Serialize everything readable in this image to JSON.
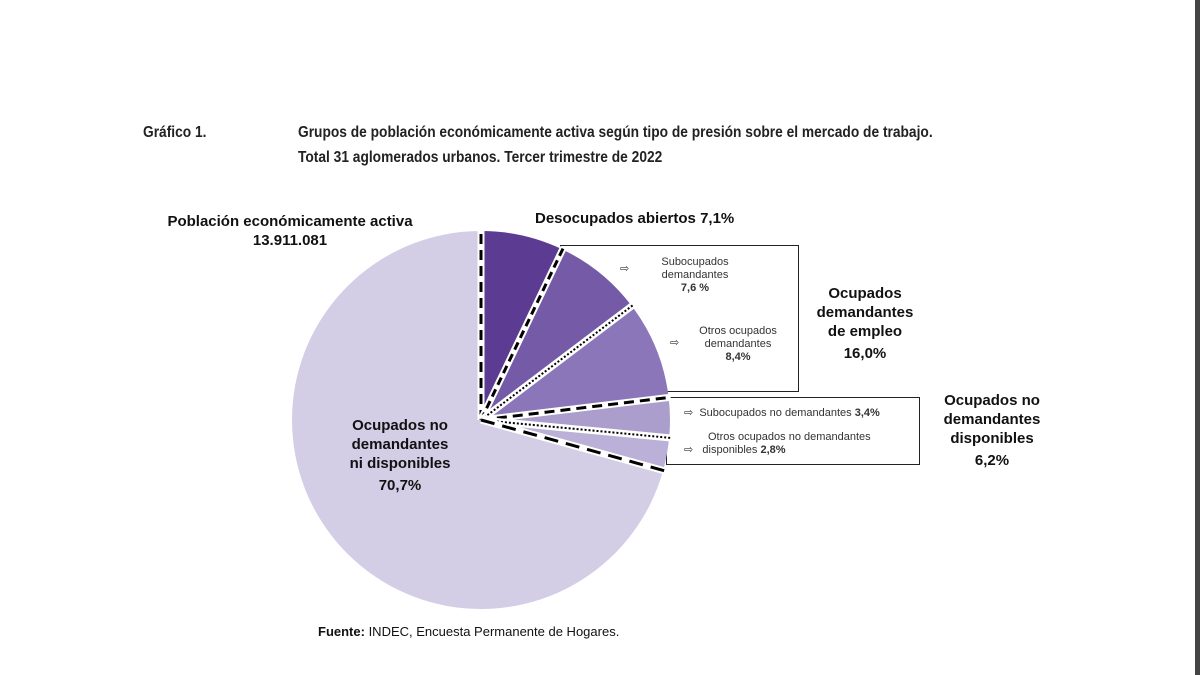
{
  "header": {
    "figure_label": "Gráfico 1.",
    "title_line1": "Grupos de población económicamente activa según tipo de presión sobre el mercado de trabajo.",
    "title_line2": "Total 31 aglomerados urbanos. Tercer trimestre de 2022"
  },
  "chart_data": {
    "type": "pie",
    "total_label": "Población económicamente activa",
    "total_value": "13.911.081",
    "slices": [
      {
        "name": "Desocupados abiertos",
        "value": 7.1,
        "label": "7,1%",
        "color": "#5c3b92"
      },
      {
        "name": "Subocupados demandantes",
        "value": 7.6,
        "label": "7,6 %",
        "color": "#755ba7"
      },
      {
        "name": "Otros ocupados demandantes",
        "value": 8.4,
        "label": "8,4%",
        "color": "#8a76b9"
      },
      {
        "name": "Subocupados no demandantes",
        "value": 3.4,
        "label": "3,4%",
        "color": "#ab9dcc"
      },
      {
        "name": "Otros ocupados no demandantes disponibles",
        "value": 2.8,
        "label": "2,8%",
        "color": "#bbb0d7"
      },
      {
        "name": "Ocupados no demandantes ni disponibles",
        "value": 70.7,
        "label": "70,7%",
        "color": "#d3cde6"
      }
    ],
    "groups": [
      {
        "name": "Ocupados demandantes de empleo",
        "lines": [
          "Ocupados",
          "demandantes",
          "de empleo"
        ],
        "label": "16,0%"
      },
      {
        "name": "Ocupados no demandantes disponibles",
        "lines": [
          "Ocupados no",
          "demandantes",
          "disponibles"
        ],
        "label": "6,2%"
      }
    ],
    "texts": {
      "desocupados": "Desocupados abiertos",
      "sub_dem_1": "Subocupados",
      "sub_dem_2": "demandantes",
      "otros_dem_1": "Otros ocupados",
      "otros_dem_2": "demandantes",
      "sub_nodem": "Subocupados no demandantes",
      "otros_nodem_1": "Otros ocupados no demandantes",
      "otros_nodem_2": "disponibles",
      "big_1": "Ocupados no",
      "big_2": "demandantes",
      "big_3": "ni disponibles"
    },
    "arrow_icon": "outline-right-arrow"
  },
  "footer": {
    "source_label": "Fuente:",
    "source_text": " INDEC, Encuesta Permanente de Hogares."
  }
}
